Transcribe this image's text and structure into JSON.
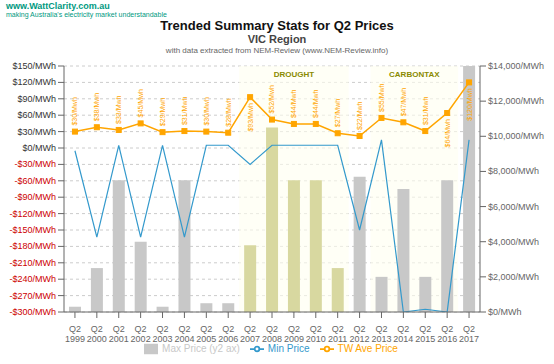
{
  "chart_data": {
    "type": "bar",
    "title": "Trended Summary Stats for Q2 Prices",
    "subtitle": [
      "VIC Region",
      "with data extracted from NEM-Review (www.NEM-Review.info)"
    ],
    "categories": [
      "Q2\n1999",
      "Q2\n2000",
      "Q2\n2001",
      "Q2\n2002",
      "Q2\n2003",
      "Q2\n2004",
      "Q2\n2005",
      "Q2\n2006",
      "Q2\n2007",
      "Q2\n2008",
      "Q2\n2009",
      "Q2\n2010",
      "Q2\n2011",
      "Q2\n2012",
      "Q2\n2013",
      "Q2\n2014",
      "Q2\n2015",
      "Q2\n2016",
      "Q2\n2017"
    ],
    "series": [
      {
        "name": "Max Price (y2 ax)",
        "type": "bar",
        "axis": "y2",
        "color": "#c8c8c8",
        "colors": [
          "#c8c8c8",
          "#c8c8c8",
          "#c8c8c8",
          "#c8c8c8",
          "#c8c8c8",
          "#c8c8c8",
          "#c8c8c8",
          "#c8c8c8",
          "#d8d8a0",
          "#d8d8a0",
          "#d8d8a0",
          "#d8d8a0",
          "#d8d8a0",
          "#c8c8c8",
          "#c8c8c8",
          "#c8c8c8",
          "#c8c8c8",
          "#c8c8c8",
          "#c8c8c8"
        ],
        "values": [
          300,
          2500,
          7500,
          4000,
          300,
          7500,
          500,
          500,
          3800,
          10500,
          7500,
          7500,
          2500,
          7700,
          2000,
          7000,
          2000,
          7500,
          14000
        ]
      },
      {
        "name": "TW Ave Price",
        "type": "line",
        "color": "#FFA500",
        "marker": "square",
        "data_labels": true,
        "values": [
          30,
          38,
          33,
          45,
          29,
          31,
          30,
          28,
          93,
          52,
          44,
          44,
          27,
          22,
          55,
          47,
          31,
          64,
          120
        ],
        "value_labels": [
          "$30/Mwh",
          "$38/Mwh",
          "$33/Mwh",
          "$45/Mwh",
          "$29/Mwh",
          "$31/Mwh",
          "$30/Mwh",
          "$28/Mwh",
          "$93/Mwh",
          "$52/Mwh",
          "$44/Mwh",
          "$44/Mwh",
          "$27/Mwh",
          "$22/Mwh",
          "$55/Mwh",
          "$47/Mwh",
          "$31/Mwh",
          "$64/Mwh",
          "$120/Mwh"
        ]
      },
      {
        "name": "Min Price",
        "type": "line",
        "color": "#3399cc",
        "values": [
          -5,
          -163,
          5,
          -163,
          5,
          -163,
          5,
          5,
          -30,
          5,
          5,
          5,
          5,
          -150,
          15,
          -300,
          -295,
          -300,
          15
        ]
      }
    ],
    "ylim": [
      -300,
      150
    ],
    "yticks": [
      {
        "value": -300,
        "label": "-$300/MWh"
      },
      {
        "value": -270,
        "label": "-$270/MWh"
      },
      {
        "value": -240,
        "label": "-$240/MWh"
      },
      {
        "value": -210,
        "label": "-$210/MWh"
      },
      {
        "value": -180,
        "label": "-$180/MWh"
      },
      {
        "value": -150,
        "label": "-$150/MWh"
      },
      {
        "value": -120,
        "label": "-$120/MWh"
      },
      {
        "value": -90,
        "label": "-$90/MWh"
      },
      {
        "value": -60,
        "label": "-$60/MWh"
      },
      {
        "value": -30,
        "label": "-$30/MWh"
      },
      {
        "value": 0,
        "label": "$0/MWh"
      },
      {
        "value": 30,
        "label": "$30/MWh"
      },
      {
        "value": 60,
        "label": "$60/MWh"
      },
      {
        "value": 90,
        "label": "$90/MWh"
      },
      {
        "value": 120,
        "label": "$120/MWh"
      },
      {
        "value": 150,
        "label": "$150/MWh"
      }
    ],
    "y2lim": [
      0,
      14000
    ],
    "y2ticks": [
      {
        "value": 0,
        "label": "$0/MWh"
      },
      {
        "value": 2000,
        "label": "$2,000/MWh"
      },
      {
        "value": 4000,
        "label": "$4,000/MWh"
      },
      {
        "value": 6000,
        "label": "$6,000/MWh"
      },
      {
        "value": 8000,
        "label": "$8,000/MWh"
      },
      {
        "value": 10000,
        "label": "$10,000/MWh"
      },
      {
        "value": 12000,
        "label": "$12,000/MWh"
      },
      {
        "value": 14000,
        "label": "$14,000/MWh"
      }
    ],
    "grid": true,
    "legend": "bottom",
    "annotations": [
      {
        "text": "www.WattClarity.com.au"
      },
      {
        "text": "making Australia's electricity market understandable"
      },
      {
        "text": "DROUGHT",
        "from": "Q2\n2007",
        "to": "Q2\n2011",
        "color": "#fffff0"
      },
      {
        "text": "CARBONTAX",
        "from": "Q2\n2013",
        "to": "Q2\n2016",
        "color": "#fffff0"
      }
    ]
  }
}
